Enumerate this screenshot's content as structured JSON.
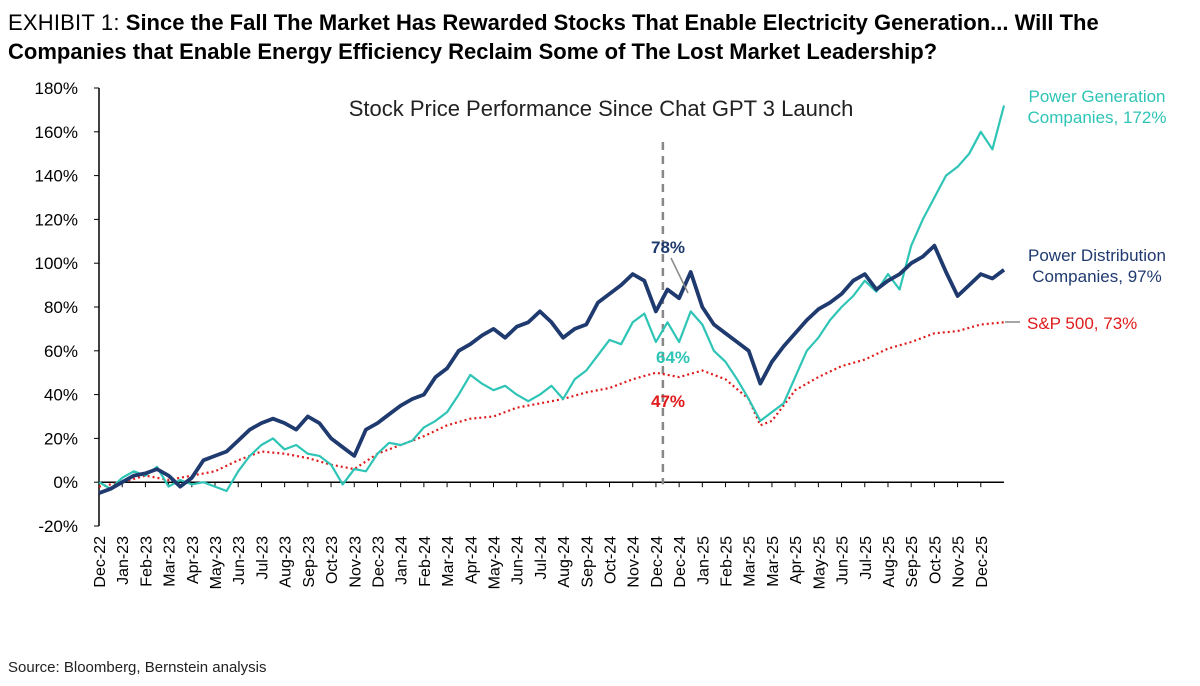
{
  "header": {
    "exhibit": "EXHIBIT 1:",
    "headline": "Since the Fall The Market Has Rewarded Stocks That Enable Electricity Generation... Will The Companies that Enable Energy Efficiency Reclaim Some of The Lost Market Leadership?"
  },
  "source": "Source: Bloomberg, Bernstein analysis",
  "chart_data": {
    "type": "line",
    "title": "Stock Price Performance Since Chat GPT 3 Launch",
    "xlabel": "",
    "ylabel": "",
    "ylim": [
      -20,
      180
    ],
    "yticks": [
      "-20%",
      "0%",
      "20%",
      "40%",
      "60%",
      "80%",
      "100%",
      "120%",
      "140%",
      "160%",
      "180%"
    ],
    "x_ticks": [
      "Dec-22",
      "Jan-23",
      "Feb-23",
      "Mar-23",
      "Apr-23",
      "May-23",
      "Jun-23",
      "Jul-23",
      "Aug-23",
      "Sep-23",
      "Oct-23",
      "Nov-23",
      "Dec-23",
      "Jan-24",
      "Feb-24",
      "Mar-24",
      "Apr-24",
      "May-24",
      "Jun-24",
      "Jul-24",
      "Aug-24",
      "Sep-24",
      "Oct-24",
      "Nov-24",
      "Dec-24",
      "Dec-24",
      "Jan-25",
      "Feb-25",
      "Mar-25",
      "Mar-25",
      "Apr-25",
      "May-25",
      "Jun-25",
      "Jul-25",
      "Aug-25",
      "Sep-25",
      "Oct-25",
      "Nov-25",
      "Dec-25"
    ],
    "x_index_range": [
      0,
      39
    ],
    "grid": false,
    "legend": "inline labels at right end of each line",
    "series": [
      {
        "name": "Power Generation Companies",
        "end_label": "Power Generation Companies, 172%",
        "color": "#2ec4b6",
        "style": "solid",
        "points": [
          [
            0,
            0
          ],
          [
            0.5,
            -3
          ],
          [
            1,
            2
          ],
          [
            1.5,
            5
          ],
          [
            2,
            3
          ],
          [
            2.5,
            7
          ],
          [
            3,
            -2
          ],
          [
            3.5,
            1
          ],
          [
            4,
            -1
          ],
          [
            4.5,
            0
          ],
          [
            5,
            -2
          ],
          [
            5.5,
            -4
          ],
          [
            6,
            5
          ],
          [
            6.5,
            12
          ],
          [
            7,
            17
          ],
          [
            7.5,
            20
          ],
          [
            8,
            15
          ],
          [
            8.5,
            17
          ],
          [
            9,
            13
          ],
          [
            9.5,
            12
          ],
          [
            10,
            8
          ],
          [
            10.5,
            -1
          ],
          [
            11,
            6
          ],
          [
            11.5,
            5
          ],
          [
            12,
            13
          ],
          [
            12.5,
            18
          ],
          [
            13,
            17
          ],
          [
            13.5,
            19
          ],
          [
            14,
            25
          ],
          [
            14.5,
            28
          ],
          [
            15,
            32
          ],
          [
            15.5,
            40
          ],
          [
            16,
            49
          ],
          [
            16.5,
            45
          ],
          [
            17,
            42
          ],
          [
            17.5,
            44
          ],
          [
            18,
            40
          ],
          [
            18.5,
            37
          ],
          [
            19,
            40
          ],
          [
            19.5,
            44
          ],
          [
            20,
            38
          ],
          [
            20.5,
            47
          ],
          [
            21,
            51
          ],
          [
            21.5,
            58
          ],
          [
            22,
            65
          ],
          [
            22.5,
            63
          ],
          [
            23,
            73
          ],
          [
            23.5,
            77
          ],
          [
            24,
            64
          ],
          [
            24.5,
            73
          ],
          [
            25,
            64
          ],
          [
            25.5,
            78
          ],
          [
            26,
            72
          ],
          [
            26.5,
            60
          ],
          [
            27,
            55
          ],
          [
            27.5,
            47
          ],
          [
            28,
            38
          ],
          [
            28.5,
            28
          ],
          [
            29,
            32
          ],
          [
            29.5,
            36
          ],
          [
            30,
            48
          ],
          [
            30.5,
            60
          ],
          [
            31,
            66
          ],
          [
            31.5,
            74
          ],
          [
            32,
            80
          ],
          [
            32.5,
            85
          ],
          [
            33,
            92
          ],
          [
            33.5,
            87
          ],
          [
            34,
            95
          ],
          [
            34.5,
            88
          ],
          [
            35,
            108
          ],
          [
            35.5,
            120
          ],
          [
            36,
            130
          ],
          [
            36.5,
            140
          ],
          [
            37,
            144
          ],
          [
            37.5,
            150
          ],
          [
            38,
            160
          ],
          [
            38.5,
            152
          ],
          [
            39,
            172
          ]
        ]
      },
      {
        "name": "Power Distribution Companies",
        "end_label": "Power Distribution Companies, 97%",
        "color": "#1f3a6e",
        "style": "solid",
        "points": [
          [
            0,
            -5
          ],
          [
            0.5,
            -3
          ],
          [
            1,
            0
          ],
          [
            1.5,
            3
          ],
          [
            2,
            4
          ],
          [
            2.5,
            6
          ],
          [
            3,
            3
          ],
          [
            3.5,
            -2
          ],
          [
            4,
            2
          ],
          [
            4.5,
            10
          ],
          [
            5,
            12
          ],
          [
            5.5,
            14
          ],
          [
            6,
            19
          ],
          [
            6.5,
            24
          ],
          [
            7,
            27
          ],
          [
            7.5,
            29
          ],
          [
            8,
            27
          ],
          [
            8.5,
            24
          ],
          [
            9,
            30
          ],
          [
            9.5,
            27
          ],
          [
            10,
            20
          ],
          [
            10.5,
            16
          ],
          [
            11,
            12
          ],
          [
            11.5,
            24
          ],
          [
            12,
            27
          ],
          [
            12.5,
            31
          ],
          [
            13,
            35
          ],
          [
            13.5,
            38
          ],
          [
            14,
            40
          ],
          [
            14.5,
            48
          ],
          [
            15,
            52
          ],
          [
            15.5,
            60
          ],
          [
            16,
            63
          ],
          [
            16.5,
            67
          ],
          [
            17,
            70
          ],
          [
            17.5,
            66
          ],
          [
            18,
            71
          ],
          [
            18.5,
            73
          ],
          [
            19,
            78
          ],
          [
            19.5,
            73
          ],
          [
            20,
            66
          ],
          [
            20.5,
            70
          ],
          [
            21,
            72
          ],
          [
            21.5,
            82
          ],
          [
            22,
            86
          ],
          [
            22.5,
            90
          ],
          [
            23,
            95
          ],
          [
            23.5,
            92
          ],
          [
            24,
            78
          ],
          [
            24.5,
            88
          ],
          [
            25,
            84
          ],
          [
            25.5,
            96
          ],
          [
            26,
            80
          ],
          [
            26.5,
            72
          ],
          [
            27,
            68
          ],
          [
            27.5,
            64
          ],
          [
            28,
            60
          ],
          [
            28.5,
            45
          ],
          [
            29,
            55
          ],
          [
            29.5,
            62
          ],
          [
            30,
            68
          ],
          [
            30.5,
            74
          ],
          [
            31,
            79
          ],
          [
            31.5,
            82
          ],
          [
            32,
            86
          ],
          [
            32.5,
            92
          ],
          [
            33,
            95
          ],
          [
            33.5,
            88
          ],
          [
            34,
            92
          ],
          [
            34.5,
            95
          ],
          [
            35,
            100
          ],
          [
            35.5,
            103
          ],
          [
            36,
            108
          ],
          [
            36.5,
            96
          ],
          [
            37,
            85
          ],
          [
            37.5,
            90
          ],
          [
            38,
            95
          ],
          [
            38.5,
            93
          ],
          [
            39,
            97
          ]
        ]
      },
      {
        "name": "S&P 500",
        "end_label": "S&P 500, 73%",
        "color": "#e01b1b",
        "style": "dotted",
        "points": [
          [
            0,
            -2
          ],
          [
            1,
            0
          ],
          [
            2,
            3
          ],
          [
            3,
            1
          ],
          [
            4,
            3
          ],
          [
            5,
            5
          ],
          [
            6,
            10
          ],
          [
            7,
            14
          ],
          [
            8,
            13
          ],
          [
            9,
            11
          ],
          [
            10,
            8
          ],
          [
            11,
            6
          ],
          [
            12,
            13
          ],
          [
            13,
            17
          ],
          [
            14,
            21
          ],
          [
            15,
            26
          ],
          [
            16,
            29
          ],
          [
            17,
            30
          ],
          [
            18,
            34
          ],
          [
            19,
            36
          ],
          [
            20,
            38
          ],
          [
            21,
            41
          ],
          [
            22,
            43
          ],
          [
            23,
            47
          ],
          [
            24,
            50
          ],
          [
            25,
            48
          ],
          [
            26,
            51
          ],
          [
            27,
            47
          ],
          [
            28,
            38
          ],
          [
            28.5,
            26
          ],
          [
            29,
            28
          ],
          [
            30,
            42
          ],
          [
            31,
            48
          ],
          [
            32,
            53
          ],
          [
            33,
            56
          ],
          [
            34,
            61
          ],
          [
            35,
            64
          ],
          [
            36,
            68
          ],
          [
            37,
            69
          ],
          [
            38,
            72
          ],
          [
            39,
            73
          ]
        ]
      }
    ],
    "annotations": [
      {
        "text": "78%",
        "color": "#1f3a6e"
      },
      {
        "text": "64%",
        "color": "#2ec4b6"
      },
      {
        "text": "47%",
        "color": "#e01b1b"
      }
    ],
    "vertical_marker_index": 24.3
  }
}
